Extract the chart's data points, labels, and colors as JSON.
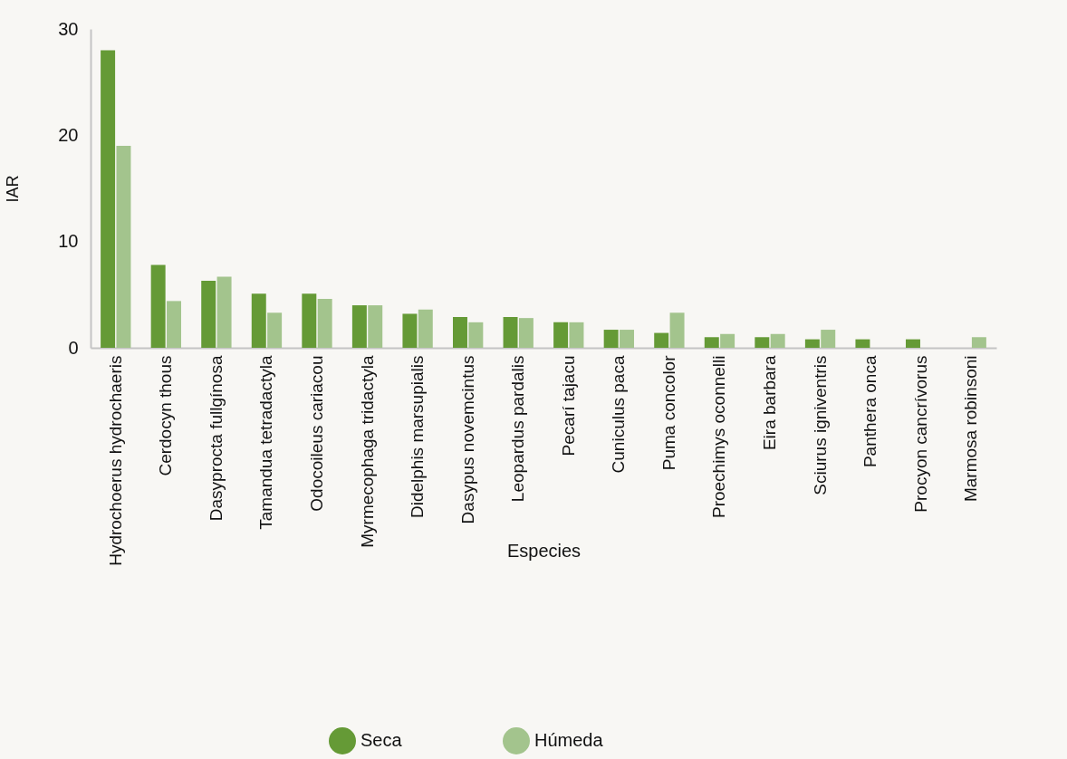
{
  "chart_data": {
    "type": "bar",
    "xlabel": "Especies",
    "ylabel": "IAR",
    "categories": [
      "Hydrochoerus hydrochaeris",
      "Cerdocyn thous",
      "Dasyprocta fullgínosa",
      "Tamandua tetradactyla",
      "Odocoileus cariacou",
      "Myrmecophaga tridactyla",
      "Didelphis marsupialis",
      "Dasypus novemcintus",
      "Leopardus pardalis",
      "Pecarí tajacu",
      "Cuniculus paca",
      "Puma concolor",
      "Proechimys oconnelli",
      "Eira barbara",
      "Sciurus igniventris",
      "Panthera onca",
      "Procyon cancrívorus",
      "Marmosa robinsoni"
    ],
    "series": [
      {
        "name": "Seca",
        "color": "#659a36",
        "values": [
          28,
          7.8,
          6.3,
          5.1,
          5.1,
          4.0,
          3.2,
          2.9,
          2.9,
          2.4,
          1.7,
          1.4,
          1.0,
          1.0,
          0.8,
          0.8,
          0.8,
          0
        ]
      },
      {
        "name": "Húmeda",
        "color": "#a3c48d",
        "values": [
          19,
          4.4,
          6.7,
          3.3,
          4.6,
          4.0,
          3.6,
          2.4,
          2.8,
          2.4,
          1.7,
          3.3,
          1.3,
          1.3,
          1.7,
          0,
          0,
          1.0
        ]
      }
    ],
    "ylim": [
      0,
      30
    ],
    "yticks": [
      0,
      10,
      20,
      30
    ],
    "grid": false,
    "legend": "bottom"
  }
}
